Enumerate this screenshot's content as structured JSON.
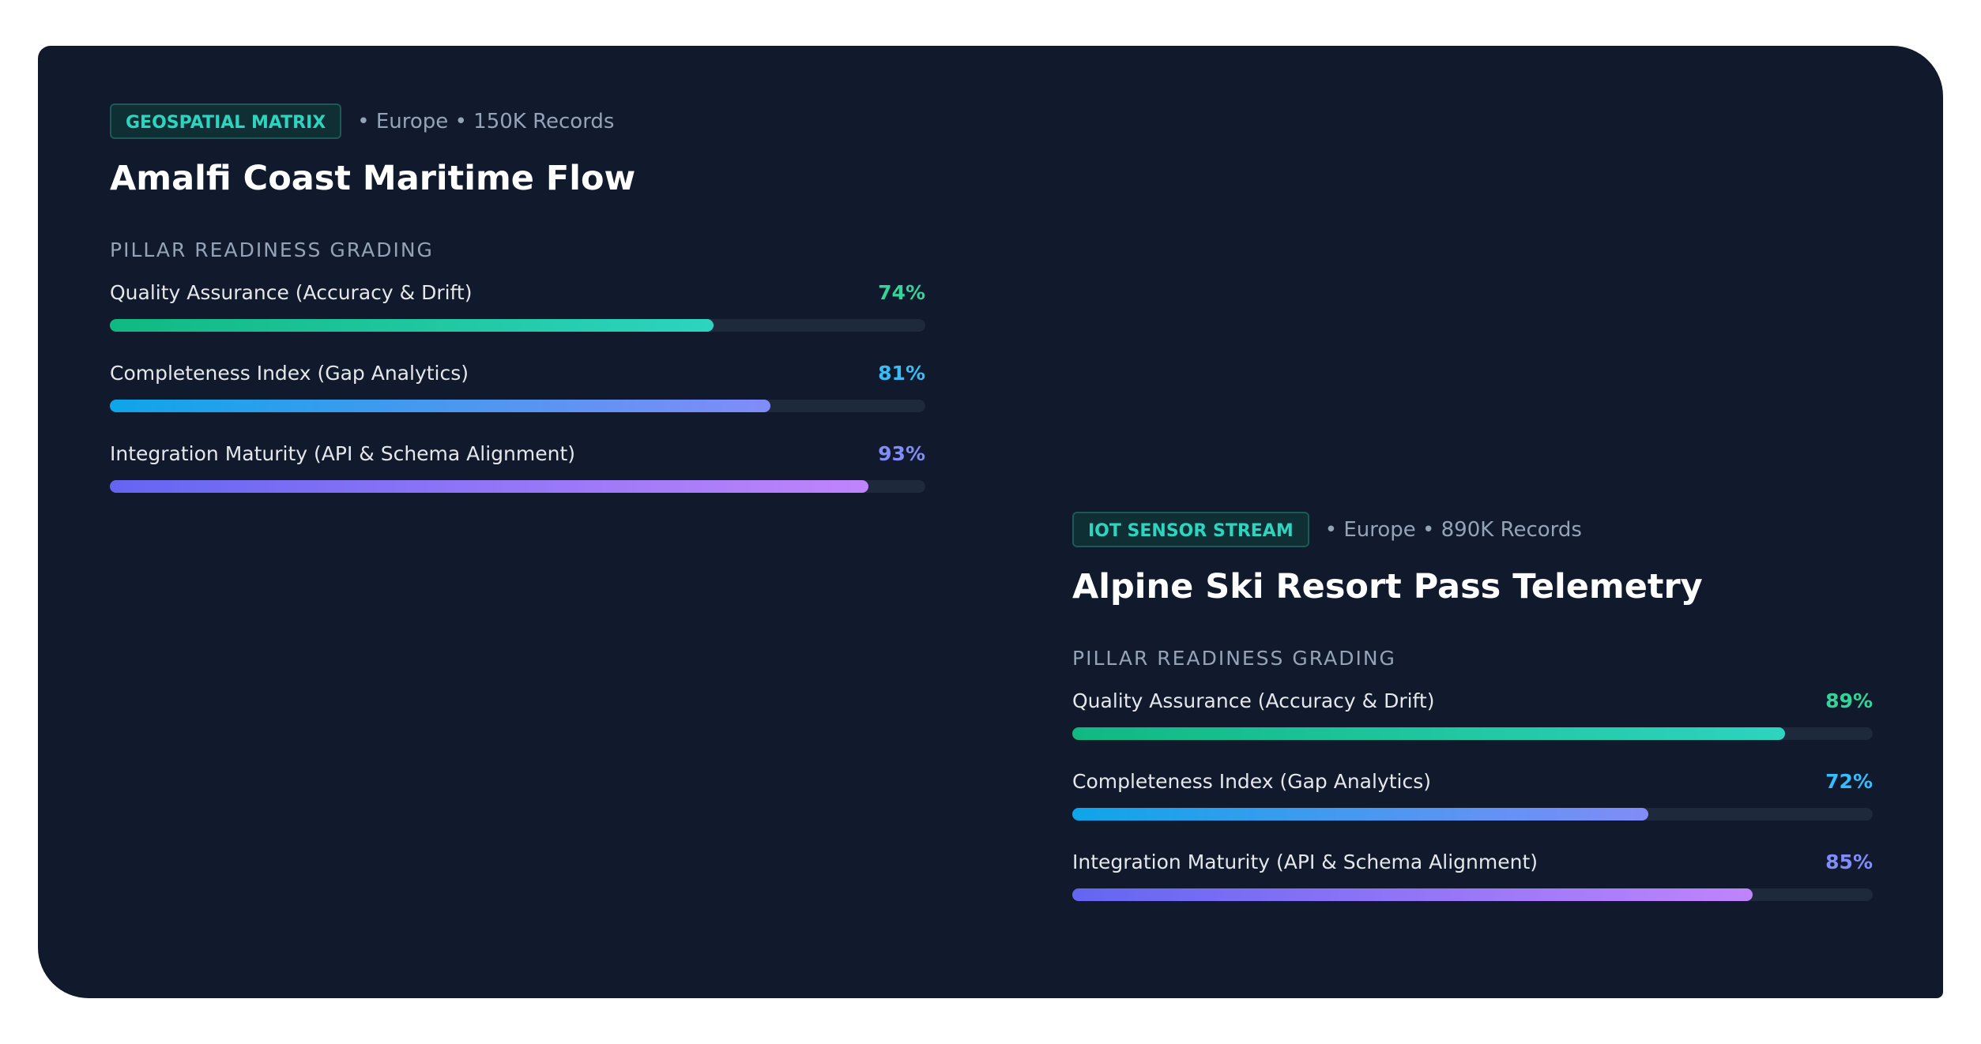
{
  "xlim": [
    0,
    100
  ],
  "cards": [
    {
      "badge": "GEOSPATIAL MATRIX",
      "meta": "• Europe • 150K Records",
      "title": "Amalfi Coast Maritime Flow",
      "section_label": "PILLAR READINESS GRADING",
      "pillars": [
        {
          "label": "Quality Assurance (Accuracy & Drift)",
          "value": 74,
          "value_label": "74%"
        },
        {
          "label": "Completeness Index (Gap Analytics)",
          "value": 81,
          "value_label": "81%"
        },
        {
          "label": "Integration Maturity (API & Schema Alignment)",
          "value": 93,
          "value_label": "93%"
        }
      ]
    },
    {
      "badge": "IOT SENSOR STREAM",
      "meta": "• Europe • 890K Records",
      "title": "Alpine Ski Resort Pass Telemetry",
      "section_label": "PILLAR READINESS GRADING",
      "pillars": [
        {
          "label": "Quality Assurance (Accuracy & Drift)",
          "value": 89,
          "value_label": "89%"
        },
        {
          "label": "Completeness Index (Gap Analytics)",
          "value": 72,
          "value_label": "72%"
        },
        {
          "label": "Integration Maturity (API & Schema Alignment)",
          "value": 85,
          "value_label": "85%"
        }
      ]
    }
  ]
}
